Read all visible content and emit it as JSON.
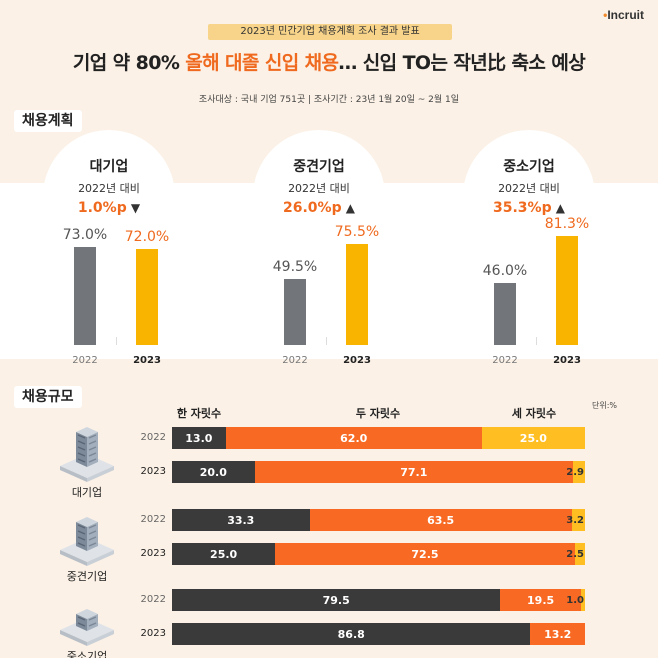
{
  "logo": {
    "text": "Incruit",
    "mark": "•"
  },
  "header": {
    "survey": "2023년 민간기업 채용계획 조사 결과 발표",
    "headline_pre": "기업 약 80% ",
    "headline_hl": "올해 대졸 신입 채용",
    "headline_post": "… 신입 TO는 작년比 축소 예상",
    "subinfo": "조사대상 : 국내 기업 751곳  |  조사기간 : 23년 1월 20일 ~ 2월 1일"
  },
  "sections": {
    "plan": "채용계획",
    "scale": "채용규모"
  },
  "colors": {
    "gray_bar": "#72767b",
    "gold_bar": "#f9b400",
    "accent": "#ef6a1f",
    "dark": "#3a3a3a",
    "orange": "#f86a23",
    "gold": "#ffbe22"
  },
  "chart_data": [
    {
      "type": "bar",
      "title": "채용계획",
      "categories": [
        "2022",
        "2023"
      ],
      "ylim": [
        0,
        100
      ],
      "groups": [
        {
          "name": "대기업",
          "base": "2022년 대비",
          "diff": "1.0%p",
          "direction": "▼",
          "values": [
            73.0
          ],
          "values2023": [
            72.0
          ],
          "labels": [
            "73.0%",
            "72.0%"
          ]
        },
        {
          "name": "중견기업",
          "base": "2022년 대비",
          "diff": "26.0%p",
          "direction": "▲",
          "values": [
            49.5
          ],
          "values2023": [
            75.5
          ],
          "labels": [
            "49.5%",
            "75.5%"
          ]
        },
        {
          "name": "중소기업",
          "base": "2022년 대비",
          "diff": "35.3%p",
          "direction": "▲",
          "values": [
            46.0
          ],
          "values2023": [
            81.3
          ],
          "labels": [
            "46.0%",
            "81.3%"
          ]
        }
      ]
    },
    {
      "type": "bar",
      "stacked": true,
      "orientation": "horizontal",
      "title": "채용규모",
      "unit": "단위:%",
      "series_names": [
        "한 자릿수",
        "두 자릿수",
        "세 자릿수"
      ],
      "rows": [
        {
          "company": "대기업",
          "year": "2022",
          "values": [
            13.0,
            62.0,
            25.0
          ],
          "labels": [
            "13.0",
            "62.0",
            "25.0"
          ]
        },
        {
          "company": "대기업",
          "year": "2023",
          "values": [
            20.0,
            77.1,
            2.9
          ],
          "labels": [
            "20.0",
            "77.1",
            "2.9"
          ]
        },
        {
          "company": "중견기업",
          "year": "2022",
          "values": [
            33.3,
            63.5,
            3.2
          ],
          "labels": [
            "33.3",
            "63.5",
            "3.2"
          ]
        },
        {
          "company": "중견기업",
          "year": "2023",
          "values": [
            25.0,
            72.5,
            2.5
          ],
          "labels": [
            "25.0",
            "72.5",
            "2.5"
          ]
        },
        {
          "company": "중소기업",
          "year": "2022",
          "values": [
            79.5,
            19.5,
            1.0
          ],
          "labels": [
            "79.5",
            "19.5",
            "1.0"
          ]
        },
        {
          "company": "중소기업",
          "year": "2023",
          "values": [
            86.8,
            13.2,
            0
          ],
          "labels": [
            "86.8",
            "13.2",
            ""
          ]
        }
      ],
      "companies": [
        "대기업",
        "중견기업",
        "중소기업"
      ]
    }
  ]
}
